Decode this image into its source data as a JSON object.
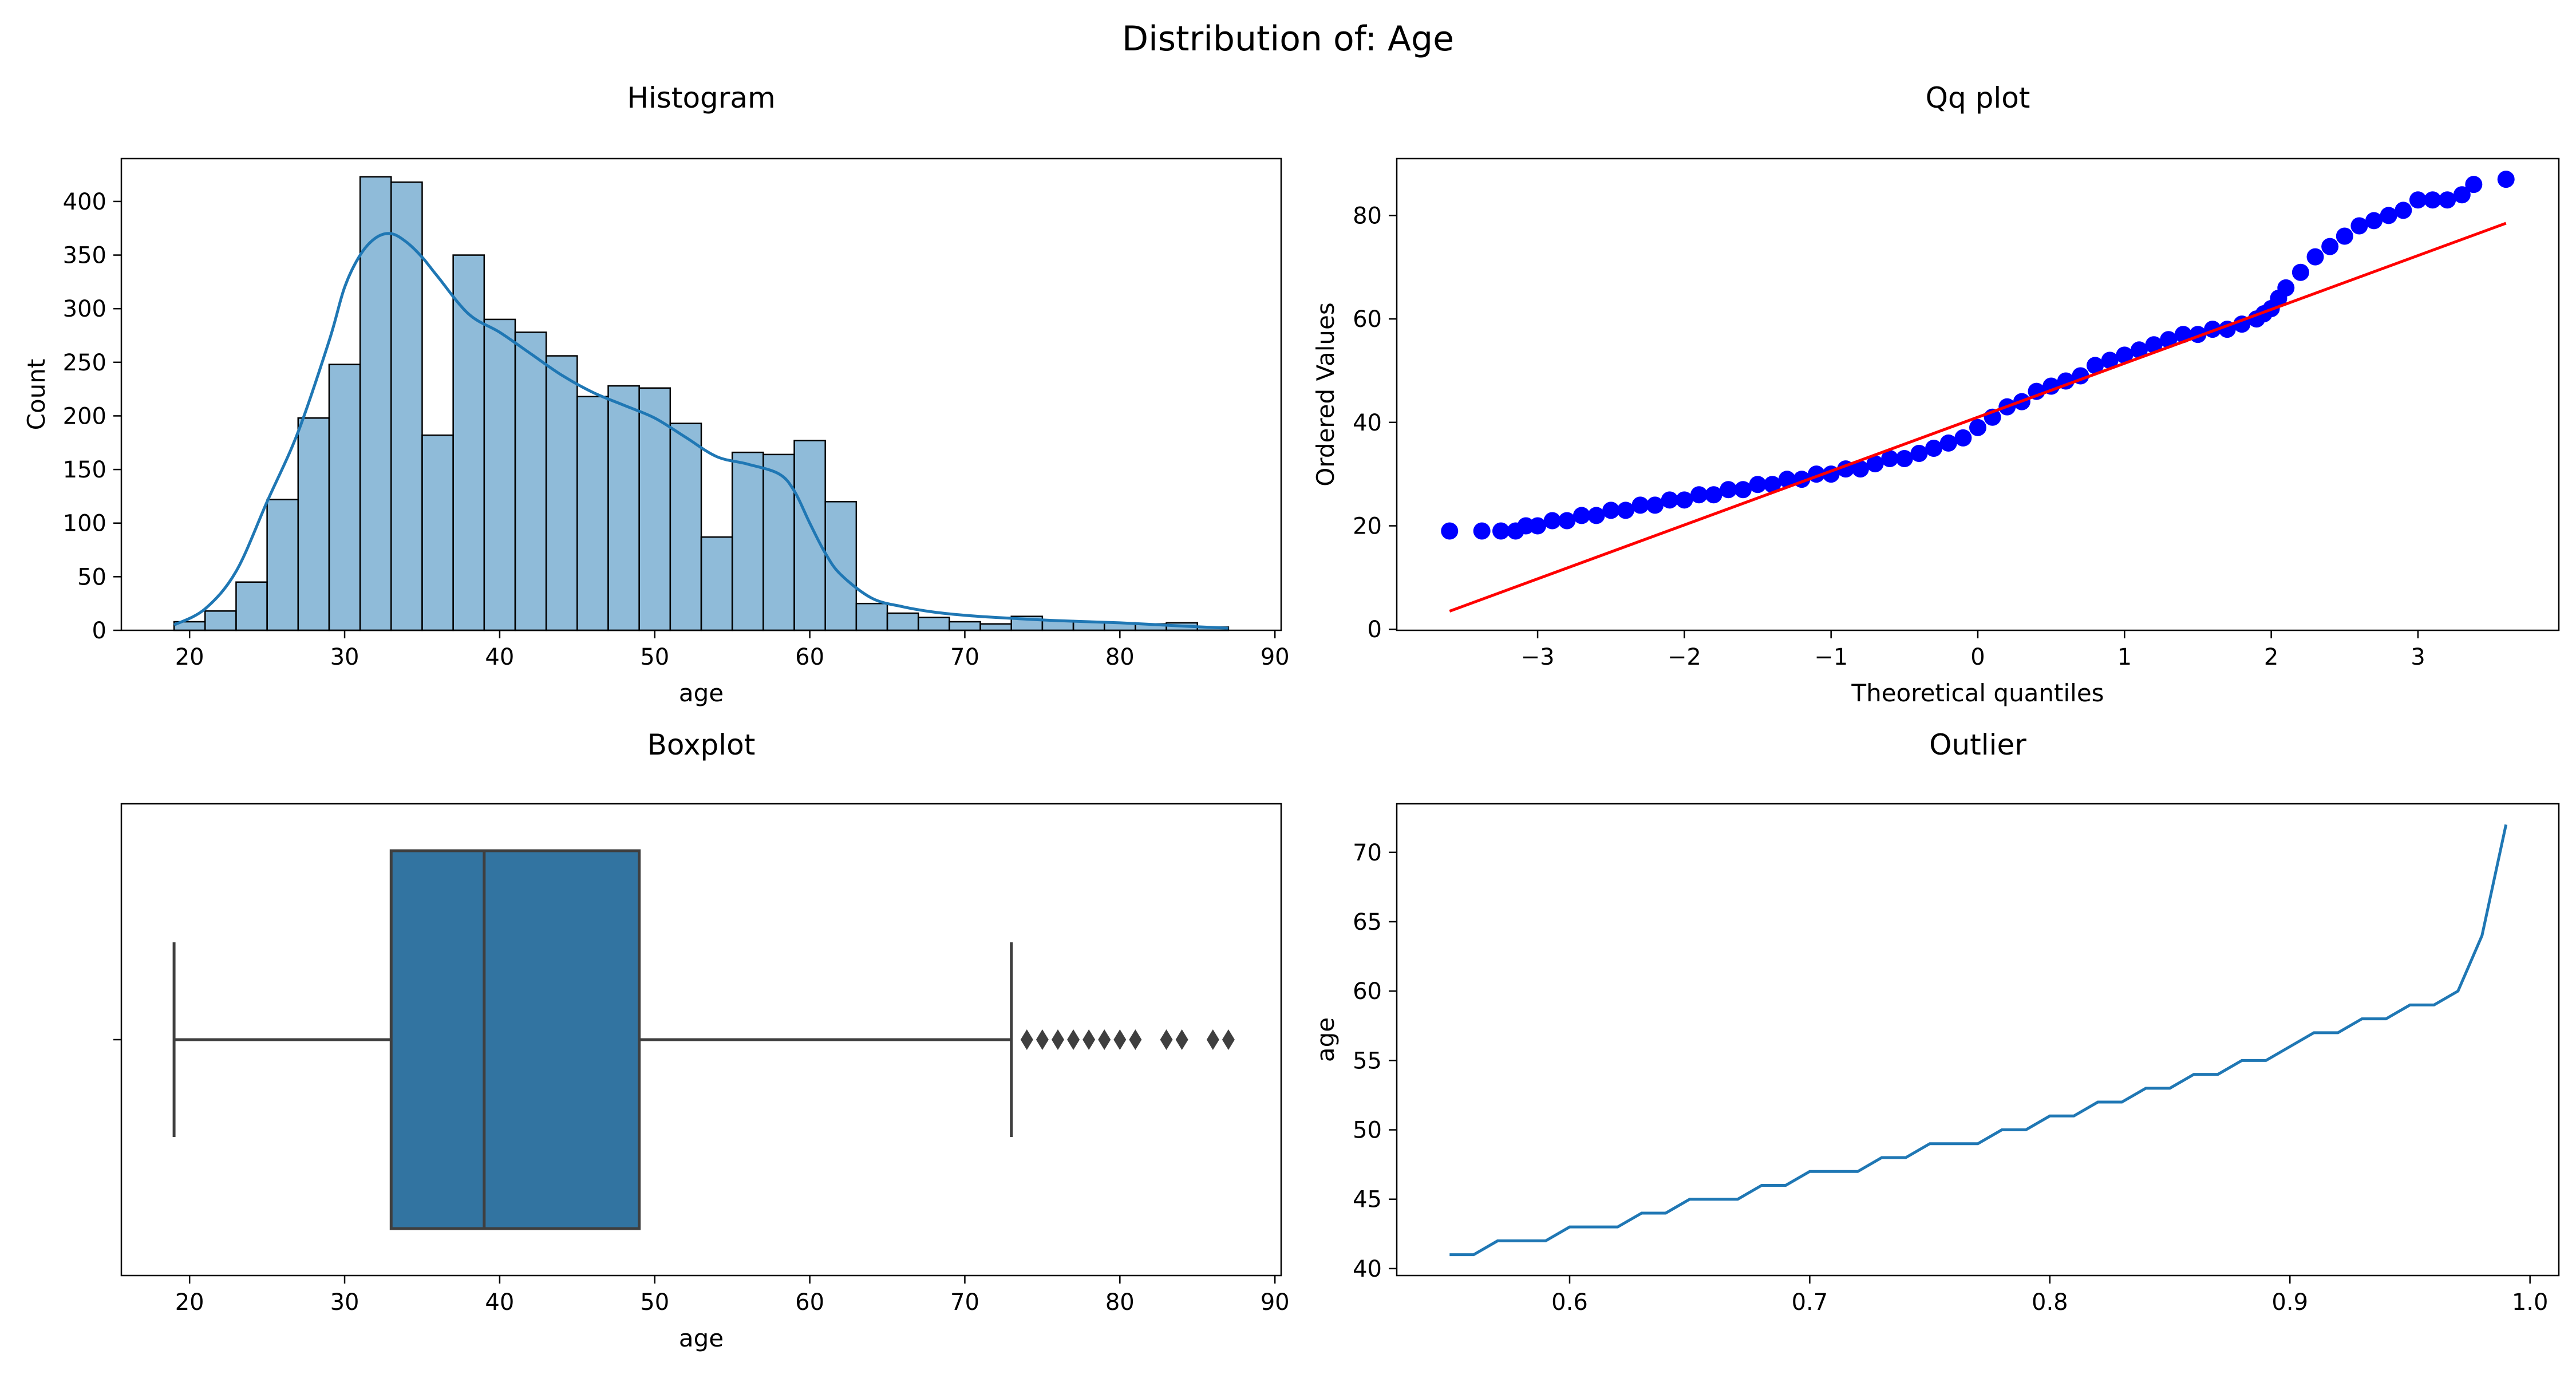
{
  "figure": {
    "suptitle": "Distribution of: Age"
  },
  "colors": {
    "hist": "#1f77b4",
    "qq_points": "#0000ff",
    "qq_line": "#ff0000",
    "box": "#3274a1",
    "line": "#1f77b4"
  },
  "chart_data": [
    {
      "id": "histogram",
      "type": "bar",
      "title": "Histogram",
      "xlabel": "age",
      "ylabel": "Count",
      "xlim": [
        15.6,
        90.4
      ],
      "ylim": [
        0,
        440
      ],
      "xticks": [
        20,
        30,
        40,
        50,
        60,
        70,
        80,
        90
      ],
      "yticks": [
        0,
        50,
        100,
        150,
        200,
        250,
        300,
        350,
        400
      ],
      "bin_start": 19,
      "bin_width": 2,
      "counts": [
        8,
        18,
        45,
        122,
        198,
        248,
        423,
        418,
        182,
        350,
        290,
        278,
        256,
        218,
        228,
        226,
        193,
        87,
        166,
        164,
        177,
        120,
        25,
        16,
        12,
        8,
        6,
        13,
        9,
        8,
        7,
        6,
        7,
        3
      ],
      "kde": {
        "x": [
          19,
          21,
          23,
          25,
          27,
          29,
          30,
          31,
          32,
          33,
          34,
          35,
          36,
          38,
          40,
          42,
          44,
          46,
          48,
          50,
          52,
          54,
          56,
          58,
          59,
          60,
          61,
          62,
          64,
          66,
          68,
          70,
          72,
          76,
          80,
          84,
          87
        ],
        "y": [
          5,
          20,
          55,
          120,
          185,
          270,
          320,
          350,
          366,
          370,
          362,
          348,
          330,
          295,
          278,
          258,
          238,
          222,
          210,
          198,
          180,
          162,
          155,
          146,
          130,
          100,
          72,
          52,
          30,
          22,
          17,
          14,
          12,
          9,
          7,
          4,
          2
        ]
      }
    },
    {
      "id": "qq",
      "type": "scatter",
      "title": "Qq plot",
      "xlabel": "Theoretical quantiles",
      "ylabel": "Ordered Values",
      "xlim": [
        -3.96,
        3.96
      ],
      "ylim": [
        -0.2,
        91
      ],
      "xticks": [
        -3,
        -2,
        -1,
        0,
        1,
        2,
        3
      ],
      "yticks": [
        0,
        20,
        40,
        60,
        80
      ],
      "points": {
        "x": [
          -3.6,
          -3.38,
          -3.25,
          -3.15,
          -3.08,
          -3.0,
          -2.9,
          -2.8,
          -2.7,
          -2.6,
          -2.5,
          -2.4,
          -2.3,
          -2.2,
          -2.1,
          -2.0,
          -1.9,
          -1.8,
          -1.7,
          -1.6,
          -1.5,
          -1.4,
          -1.3,
          -1.2,
          -1.1,
          -1.0,
          -0.9,
          -0.8,
          -0.7,
          -0.6,
          -0.5,
          -0.4,
          -0.3,
          -0.2,
          -0.1,
          0.0,
          0.1,
          0.2,
          0.3,
          0.4,
          0.5,
          0.6,
          0.7,
          0.8,
          0.9,
          1.0,
          1.1,
          1.2,
          1.3,
          1.4,
          1.5,
          1.6,
          1.7,
          1.8,
          1.9,
          1.95,
          2.0,
          2.05,
          2.1,
          2.2,
          2.3,
          2.4,
          2.5,
          2.6,
          2.7,
          2.8,
          2.9,
          3.0,
          3.1,
          3.2,
          3.3,
          3.38,
          3.6
        ],
        "y": [
          19,
          19,
          19,
          19,
          20,
          20,
          21,
          21,
          22,
          22,
          23,
          23,
          24,
          24,
          25,
          25,
          26,
          26,
          27,
          27,
          28,
          28,
          29,
          29,
          30,
          30,
          31,
          31,
          32,
          33,
          33,
          34,
          35,
          36,
          37,
          39,
          41,
          43,
          44,
          46,
          47,
          48,
          49,
          51,
          52,
          53,
          54,
          55,
          56,
          57,
          57,
          58,
          58,
          59,
          60,
          61,
          62,
          64,
          66,
          69,
          72,
          74,
          76,
          78,
          79,
          80,
          81,
          83,
          83,
          83,
          84,
          86,
          87
        ]
      },
      "fit_line": {
        "x": [
          -3.6,
          3.6
        ],
        "y": [
          3.5,
          78.5
        ]
      }
    },
    {
      "id": "boxplot",
      "type": "box",
      "title": "Boxplot",
      "xlabel": "age",
      "xlim": [
        15.6,
        90.4
      ],
      "xticks": [
        20,
        30,
        40,
        50,
        60,
        70,
        80,
        90
      ],
      "min": 19,
      "q1": 33,
      "median": 39,
      "q3": 49,
      "max": 73,
      "fliers": [
        74,
        75,
        76,
        77,
        78,
        79,
        80,
        81,
        83,
        84,
        86,
        87
      ]
    },
    {
      "id": "outlier",
      "type": "line",
      "title": "Outlier",
      "ylabel": "age",
      "xlim": [
        0.528,
        1.012
      ],
      "ylim": [
        39.5,
        73.5
      ],
      "xticks": [
        0.6,
        0.7,
        0.8,
        0.9,
        1.0
      ],
      "xtick_labels": [
        "0.6",
        "0.7",
        "0.8",
        "0.9",
        "1.0"
      ],
      "yticks": [
        40,
        45,
        50,
        55,
        60,
        65,
        70
      ],
      "x": [
        0.55,
        0.56,
        0.57,
        0.58,
        0.59,
        0.6,
        0.61,
        0.62,
        0.63,
        0.64,
        0.65,
        0.66,
        0.67,
        0.68,
        0.69,
        0.7,
        0.71,
        0.72,
        0.73,
        0.74,
        0.75,
        0.76,
        0.77,
        0.78,
        0.79,
        0.8,
        0.81,
        0.82,
        0.83,
        0.84,
        0.85,
        0.86,
        0.87,
        0.88,
        0.89,
        0.9,
        0.91,
        0.92,
        0.93,
        0.94,
        0.95,
        0.96,
        0.97,
        0.98,
        0.99
      ],
      "y": [
        41,
        41,
        42,
        42,
        42,
        43,
        43,
        43,
        44,
        44,
        45,
        45,
        45,
        46,
        46,
        47,
        47,
        47,
        48,
        48,
        49,
        49,
        49,
        50,
        50,
        51,
        51,
        52,
        52,
        53,
        53,
        54,
        54,
        55,
        55,
        56,
        57,
        57,
        58,
        58,
        59,
        59,
        60,
        64,
        72
      ]
    }
  ]
}
